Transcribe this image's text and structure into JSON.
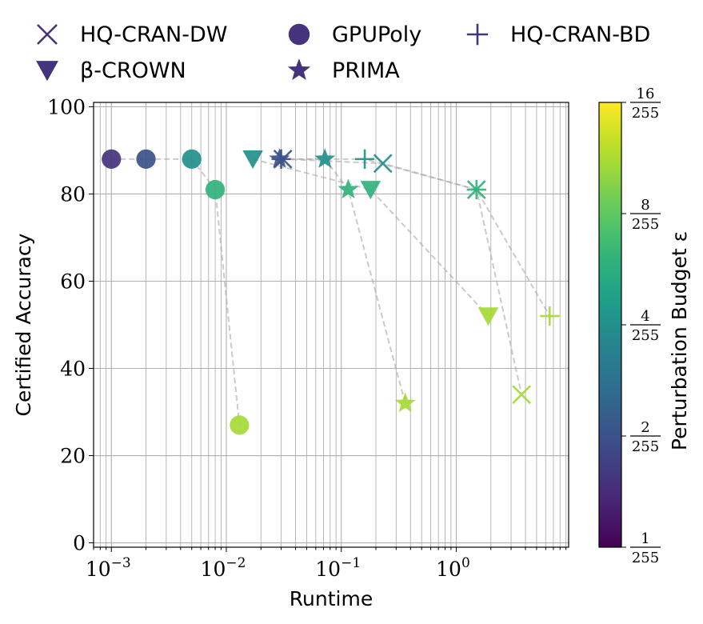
{
  "chart_data": {
    "type": "scatter",
    "xlabel": "Runtime",
    "ylabel": "Certified Accuracy",
    "x_scale": "log",
    "xlim": [
      0.0007,
      9.5
    ],
    "ylim": [
      -1,
      101
    ],
    "x_ticks": [
      {
        "value": 0.001,
        "base": "10",
        "exp": "−3"
      },
      {
        "value": 0.01,
        "base": "10",
        "exp": "−2"
      },
      {
        "value": 0.1,
        "base": "10",
        "exp": "−1"
      },
      {
        "value": 1,
        "base": "10",
        "exp": "0"
      }
    ],
    "y_ticks": [
      0,
      20,
      40,
      60,
      80,
      100
    ],
    "grid": true,
    "legend_position": "top, outside plot",
    "colorbar": {
      "label": "Perturbation Budget ε",
      "scale": "log",
      "range": [
        1,
        16
      ],
      "ticks": [
        {
          "value": 1,
          "num": "1",
          "den": "255"
        },
        {
          "value": 2,
          "num": "2",
          "den": "255"
        },
        {
          "value": 4,
          "num": "4",
          "den": "255"
        },
        {
          "value": 8,
          "num": "8",
          "den": "255"
        },
        {
          "value": 16,
          "num": "16",
          "den": "255"
        }
      ],
      "colormap": "viridis"
    },
    "series": [
      {
        "name": "HQ-CRAN-DW",
        "marker": "x",
        "points": [
          {
            "x": 0.031,
            "y": 88,
            "eps": 2
          },
          {
            "x": 0.23,
            "y": 87,
            "eps": 4
          },
          {
            "x": 1.5,
            "y": 81,
            "eps": 6
          },
          {
            "x": 3.7,
            "y": 34,
            "eps": 11
          }
        ]
      },
      {
        "name": "GPUPoly",
        "marker": "circle",
        "points": [
          {
            "x": 0.001,
            "y": 88,
            "eps": 1.5
          },
          {
            "x": 0.002,
            "y": 88,
            "eps": 2
          },
          {
            "x": 0.005,
            "y": 88,
            "eps": 4
          },
          {
            "x": 0.008,
            "y": 81,
            "eps": 6
          },
          {
            "x": 0.013,
            "y": 27,
            "eps": 11
          }
        ]
      },
      {
        "name": "HQ-CRAN-BD",
        "marker": "plus",
        "points": [
          {
            "x": 0.03,
            "y": 88,
            "eps": 2
          },
          {
            "x": 0.16,
            "y": 88,
            "eps": 4
          },
          {
            "x": 1.5,
            "y": 81,
            "eps": 6
          },
          {
            "x": 6.5,
            "y": 52,
            "eps": 11
          }
        ]
      },
      {
        "name": "β-CROWN",
        "marker": "triangle-down",
        "points": [
          {
            "x": 0.017,
            "y": 88,
            "eps": 4
          },
          {
            "x": 0.18,
            "y": 81,
            "eps": 6
          },
          {
            "x": 1.9,
            "y": 52,
            "eps": 11
          }
        ]
      },
      {
        "name": "PRIMA",
        "marker": "star",
        "points": [
          {
            "x": 0.029,
            "y": 88,
            "eps": 2
          },
          {
            "x": 0.072,
            "y": 88,
            "eps": 4
          },
          {
            "x": 0.115,
            "y": 81,
            "eps": 6
          },
          {
            "x": 0.36,
            "y": 32,
            "eps": 11
          }
        ]
      }
    ],
    "legend": [
      {
        "name": "HQ-CRAN-DW",
        "marker": "x"
      },
      {
        "name": "GPUPoly",
        "marker": "circle"
      },
      {
        "name": "HQ-CRAN-BD",
        "marker": "plus"
      },
      {
        "name": "β-CROWN",
        "marker": "triangle-down"
      },
      {
        "name": "PRIMA",
        "marker": "star"
      }
    ],
    "legend_color": "#46337e",
    "grid_color": "#b0b0b0",
    "connector_color": "#a9a9a9"
  }
}
